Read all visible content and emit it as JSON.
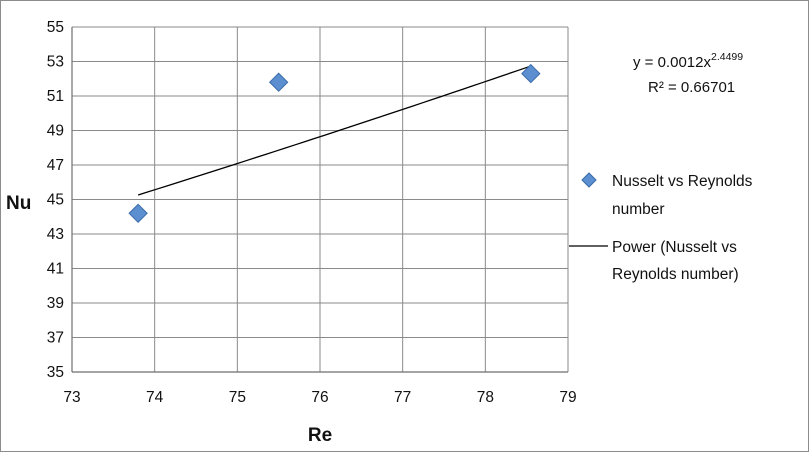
{
  "chart_data": {
    "type": "scatter",
    "xlabel": "Re",
    "ylabel": "Nu",
    "xlim": [
      73,
      79
    ],
    "ylim": [
      35,
      55
    ],
    "x_ticks": [
      73,
      74,
      75,
      76,
      77,
      78,
      79
    ],
    "y_ticks": [
      35,
      37,
      39,
      41,
      43,
      45,
      47,
      49,
      51,
      53,
      55
    ],
    "grid": "vertical and horizontal major gridlines",
    "legend_position": "right",
    "series": [
      {
        "name": "Nusselt vs Reynolds number",
        "marker": "diamond",
        "color": "#4f81bd",
        "x": [
          73.8,
          75.5,
          78.55
        ],
        "y": [
          44.2,
          51.8,
          52.3
        ]
      }
    ],
    "trendline": {
      "name": "Power (Nusselt vs Reynolds  number)",
      "type": "power",
      "coefficient": 0.0012,
      "exponent": 2.4499,
      "x_range": [
        73.8,
        78.55
      ],
      "color": "#000000",
      "equation_prefix": "y = 0.0012x",
      "equation_exponent": "2.4499",
      "r_squared_label": "R² = 0.66701"
    },
    "legend": [
      {
        "label_lines": [
          "Nusselt vs Reynolds",
          "number"
        ]
      },
      {
        "label_lines": [
          "Power (Nusselt vs",
          "Reynolds  number)"
        ]
      }
    ]
  }
}
